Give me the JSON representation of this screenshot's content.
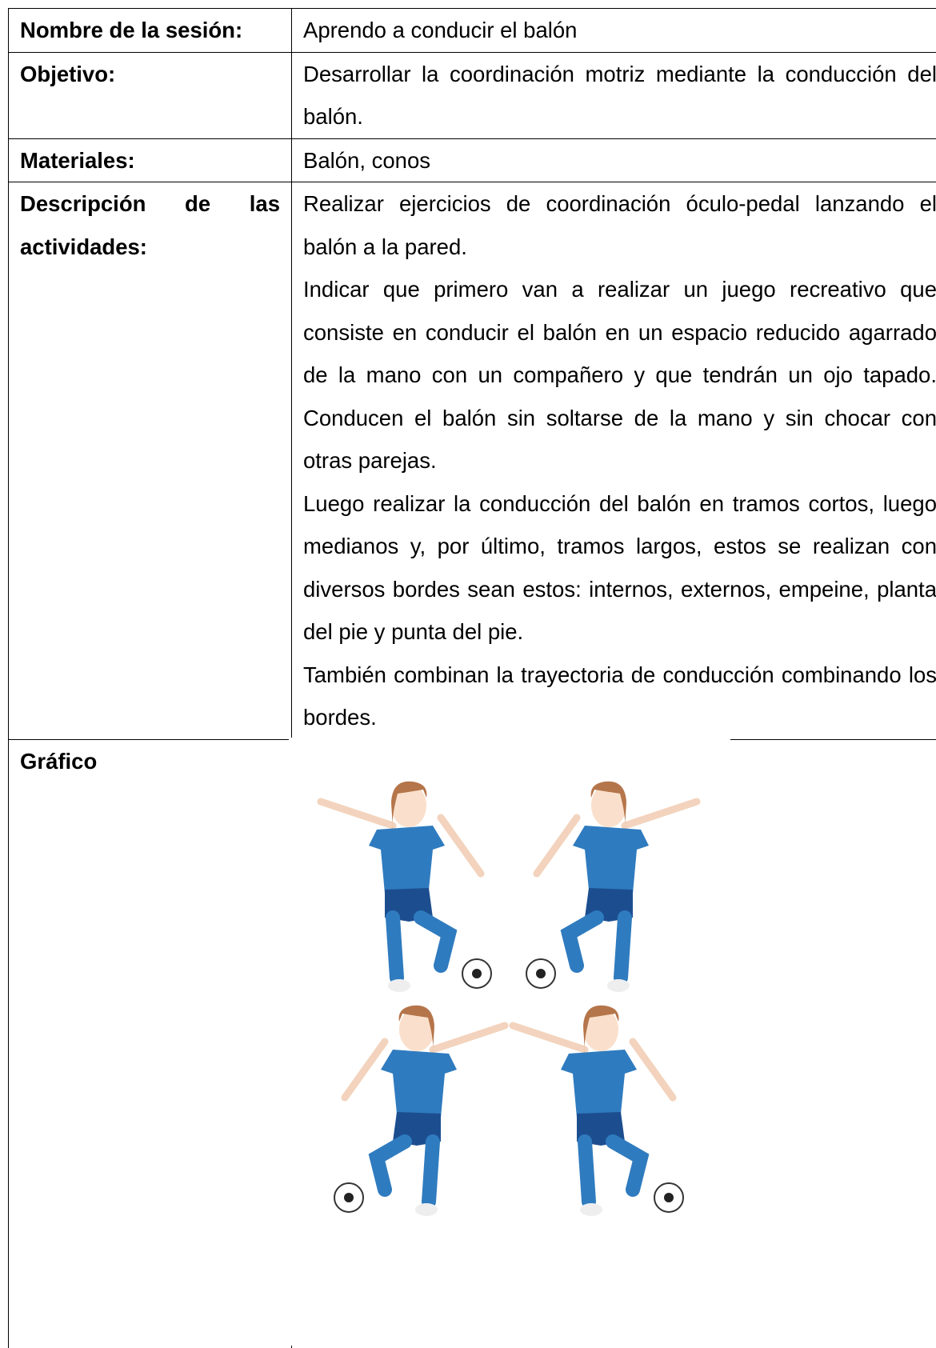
{
  "table": {
    "rows": [
      {
        "label": "Nombre de la sesión:",
        "content": [
          "Aprendo a conducir el balón"
        ]
      },
      {
        "label": "Objetivo:",
        "content": [
          "Desarrollar la coordinación motriz mediante la conducción del balón."
        ]
      },
      {
        "label": "Materiales:",
        "content": [
          "Balón, conos"
        ]
      },
      {
        "label": "Descripción de las actividades:",
        "content": [
          "Realizar ejercicios de coordinación óculo-pedal lanzando el balón a la pared.",
          "Indicar que primero van a realizar un juego recreativo que consiste en conducir el balón en un espacio reducido agarrado de la mano con un compañero y que tendrán un ojo tapado. Conducen el balón sin soltarse de la mano y sin chocar con otras parejas.",
          "Luego realizar la conducción del balón en tramos cortos, luego medianos y, por último, tramos largos, estos se realizan con diversos bordes sean estos: internos, externos, empeine, planta del pie y punta del pie.",
          "También combinan la trayectoria de conducción combinando los bordes."
        ]
      },
      {
        "label": "Gráfico",
        "content": []
      }
    ]
  }
}
